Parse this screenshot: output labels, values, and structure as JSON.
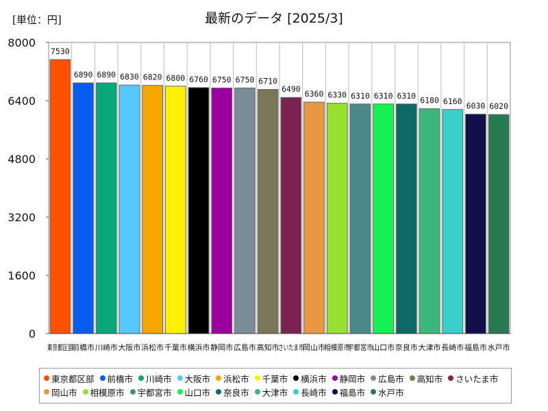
{
  "unit_label": "[単位：円]",
  "chart_data": {
    "type": "bar",
    "title": "最新のデータ [2025/3]",
    "xlabel": "",
    "ylabel": "",
    "ylim": [
      0,
      8000
    ],
    "yticks": [
      0,
      1600,
      3200,
      4800,
      6400,
      8000
    ],
    "categories": [
      "東京都区部",
      "前橋市",
      "川崎市",
      "大阪市",
      "浜松市",
      "千葉市",
      "横浜市",
      "静岡市",
      "広島市",
      "高知市",
      "さいたま市",
      "岡山市",
      "相模原市",
      "宇都宮市",
      "山口市",
      "奈良市",
      "大津市",
      "長崎市",
      "福島市",
      "水戸市"
    ],
    "values": [
      7530,
      6890,
      6890,
      6830,
      6820,
      6800,
      6760,
      6750,
      6750,
      6710,
      6490,
      6360,
      6330,
      6310,
      6310,
      6310,
      6180,
      6160,
      6030,
      6020
    ],
    "colors": [
      "#ff5000",
      "#0a5cf0",
      "#0aa878",
      "#55c8ff",
      "#f5a800",
      "#fff000",
      "#000000",
      "#9a00a0",
      "#7a8c98",
      "#7a7658",
      "#7a2250",
      "#e89840",
      "#96e030",
      "#4a8a88",
      "#16f050",
      "#0a6a64",
      "#3ab878",
      "#38d0c8",
      "#10104a",
      "#287a50"
    ]
  },
  "legend": {
    "items": [
      "東京都区部",
      "前橋市",
      "川崎市",
      "大阪市",
      "浜松市",
      "千葉市",
      "横浜市",
      "静岡市",
      "広島市",
      "高知市",
      "さいたま市",
      "岡山市",
      "相模原市",
      "宇都宮市",
      "山口市",
      "奈良市",
      "大津市",
      "長崎市",
      "福島市",
      "水戸市"
    ]
  }
}
